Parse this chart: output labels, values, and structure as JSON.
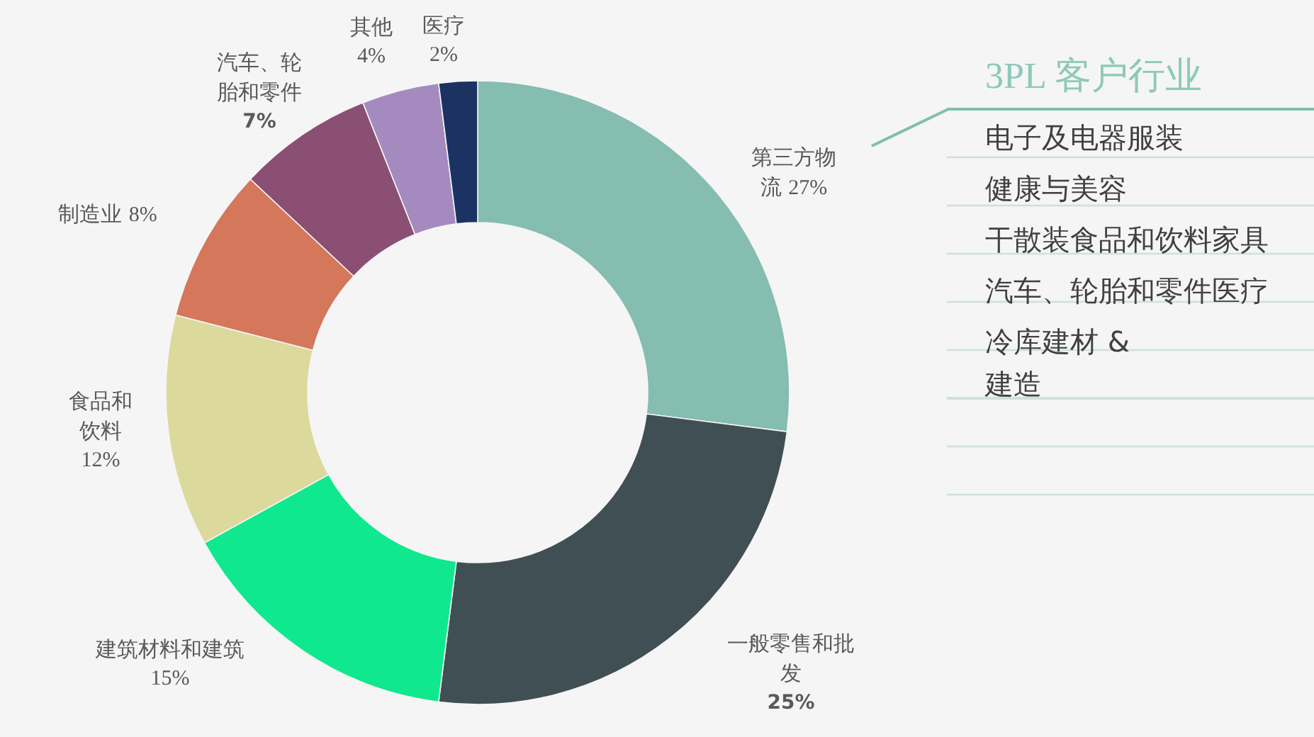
{
  "chart_data": [
    {
      "type": "donut",
      "categories": [
        "第三方物流",
        "一般零售和批发",
        "建筑材料和建筑",
        "食品和饮料",
        "制造业",
        "汽车、轮胎和零件",
        "其他",
        "医疗"
      ],
      "values": [
        27,
        25,
        15,
        12,
        8,
        7,
        4,
        2
      ],
      "colors": [
        "#85bdb0",
        "#404f53",
        "#0fe88f",
        "#dcd99c",
        "#d4775a",
        "#8a4f73",
        "#a58ac0",
        "#1c3262"
      ],
      "value_labels": [
        "27%",
        "25%",
        "15%",
        "12%",
        "8%",
        "7%",
        "4%",
        "2%"
      ]
    },
    {
      "type": "other",
      "title": "3PL 客户行业",
      "annotations": [
        "电子及电器服装",
        "健康与美容",
        "干散装食品和饮料家具",
        "汽车、轮胎和零件医疗",
        "冷库建材 &\n建造"
      ]
    }
  ]
}
